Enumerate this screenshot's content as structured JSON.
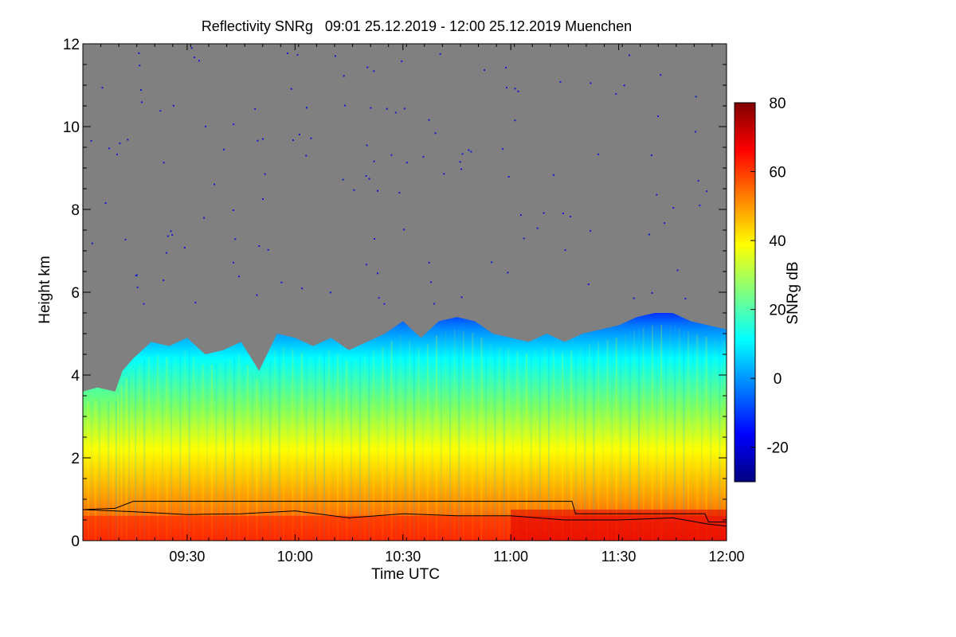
{
  "chart_data": {
    "type": "heatmap",
    "title": "Reflectivity SNRg   09:01 25.12.2019 - 12:00 25.12.2019 Muenchen",
    "xlabel": "Time UTC",
    "ylabel": "Height km",
    "x_range": [
      "09:01",
      "12:00"
    ],
    "x_ticks": [
      "09:30",
      "10:00",
      "10:30",
      "11:00",
      "11:30",
      "12:00"
    ],
    "ylim": [
      0,
      12
    ],
    "y_ticks": [
      0,
      2,
      4,
      6,
      8,
      10,
      12
    ],
    "colorbar": {
      "label": "SNRg dB",
      "range": [
        -30,
        80
      ],
      "ticks": [
        -20,
        0,
        20,
        40,
        60,
        80
      ],
      "colormap": [
        "#00007f",
        "#0000ff",
        "#0080ff",
        "#00ffff",
        "#80ff80",
        "#ffff00",
        "#ff8000",
        "#ff0000",
        "#7f0000"
      ]
    },
    "background_color": "#808080",
    "echo_top_km": [
      {
        "time": "09:01",
        "top": 3.6
      },
      {
        "time": "09:05",
        "top": 3.7
      },
      {
        "time": "09:10",
        "top": 3.6
      },
      {
        "time": "09:12",
        "top": 4.1
      },
      {
        "time": "09:15",
        "top": 4.4
      },
      {
        "time": "09:20",
        "top": 4.8
      },
      {
        "time": "09:25",
        "top": 4.7
      },
      {
        "time": "09:30",
        "top": 4.9
      },
      {
        "time": "09:35",
        "top": 4.5
      },
      {
        "time": "09:40",
        "top": 4.6
      },
      {
        "time": "09:45",
        "top": 4.8
      },
      {
        "time": "09:50",
        "top": 4.1
      },
      {
        "time": "09:55",
        "top": 5.0
      },
      {
        "time": "10:00",
        "top": 4.9
      },
      {
        "time": "10:05",
        "top": 4.7
      },
      {
        "time": "10:10",
        "top": 4.9
      },
      {
        "time": "10:15",
        "top": 4.6
      },
      {
        "time": "10:20",
        "top": 4.8
      },
      {
        "time": "10:25",
        "top": 5.0
      },
      {
        "time": "10:30",
        "top": 5.3
      },
      {
        "time": "10:35",
        "top": 4.9
      },
      {
        "time": "10:40",
        "top": 5.3
      },
      {
        "time": "10:45",
        "top": 5.4
      },
      {
        "time": "10:50",
        "top": 5.3
      },
      {
        "time": "10:55",
        "top": 5.0
      },
      {
        "time": "11:00",
        "top": 4.9
      },
      {
        "time": "11:05",
        "top": 4.8
      },
      {
        "time": "11:10",
        "top": 5.0
      },
      {
        "time": "11:15",
        "top": 4.8
      },
      {
        "time": "11:20",
        "top": 5.0
      },
      {
        "time": "11:25",
        "top": 5.1
      },
      {
        "time": "11:30",
        "top": 5.2
      },
      {
        "time": "11:35",
        "top": 5.4
      },
      {
        "time": "11:40",
        "top": 5.5
      },
      {
        "time": "11:45",
        "top": 5.5
      },
      {
        "time": "11:50",
        "top": 5.3
      },
      {
        "time": "11:55",
        "top": 5.2
      },
      {
        "time": "12:00",
        "top": 5.1
      }
    ],
    "upper_line_km": [
      {
        "time": "09:01",
        "value": 0.75
      },
      {
        "time": "09:10",
        "value": 0.78
      },
      {
        "time": "09:15",
        "value": 0.95
      },
      {
        "time": "11:17",
        "value": 0.95
      },
      {
        "time": "11:18",
        "value": 0.65
      },
      {
        "time": "11:54",
        "value": 0.65
      },
      {
        "time": "11:55",
        "value": 0.45
      },
      {
        "time": "12:00",
        "value": 0.45
      }
    ],
    "lower_line_km": [
      {
        "time": "09:01",
        "value": 0.75
      },
      {
        "time": "09:15",
        "value": 0.7
      },
      {
        "time": "09:30",
        "value": 0.63
      },
      {
        "time": "09:45",
        "value": 0.65
      },
      {
        "time": "10:00",
        "value": 0.72
      },
      {
        "time": "10:15",
        "value": 0.55
      },
      {
        "time": "10:30",
        "value": 0.65
      },
      {
        "time": "10:45",
        "value": 0.6
      },
      {
        "time": "11:00",
        "value": 0.6
      },
      {
        "time": "11:15",
        "value": 0.5
      },
      {
        "time": "11:30",
        "value": 0.5
      },
      {
        "time": "11:45",
        "value": 0.55
      },
      {
        "time": "11:55",
        "value": 0.4
      },
      {
        "time": "12:00",
        "value": 0.35
      }
    ]
  }
}
